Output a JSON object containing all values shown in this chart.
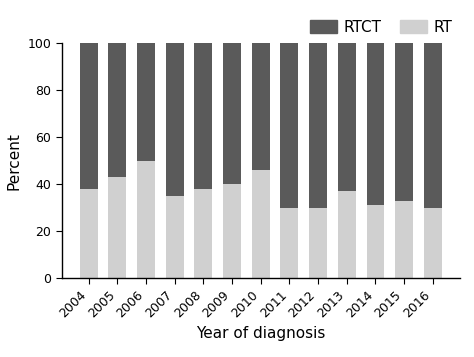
{
  "years": [
    "2004",
    "2005",
    "2006",
    "2007",
    "2008",
    "2009",
    "2010",
    "2011",
    "2012",
    "2013",
    "2014",
    "2015",
    "2016"
  ],
  "rt_values": [
    38,
    43,
    50,
    35,
    38,
    40,
    46,
    30,
    30,
    37,
    31,
    33,
    30
  ],
  "rtct_values": [
    62,
    57,
    50,
    65,
    62,
    60,
    54,
    70,
    70,
    63,
    69,
    67,
    70
  ],
  "rt_color": "#d0d0d0",
  "rtct_color": "#5a5a5a",
  "ylabel": "Percent",
  "xlabel": "Year of diagnosis",
  "ylim": [
    0,
    100
  ],
  "yticks": [
    0,
    20,
    40,
    60,
    80,
    100
  ],
  "legend_labels": [
    "RTCT",
    "RT"
  ],
  "bar_width": 0.62,
  "figsize": [
    4.74,
    3.57
  ],
  "dpi": 100,
  "background_color": "#ffffff",
  "spine_color": "#000000",
  "label_fontsize": 11,
  "tick_fontsize": 9,
  "legend_fontsize": 11
}
